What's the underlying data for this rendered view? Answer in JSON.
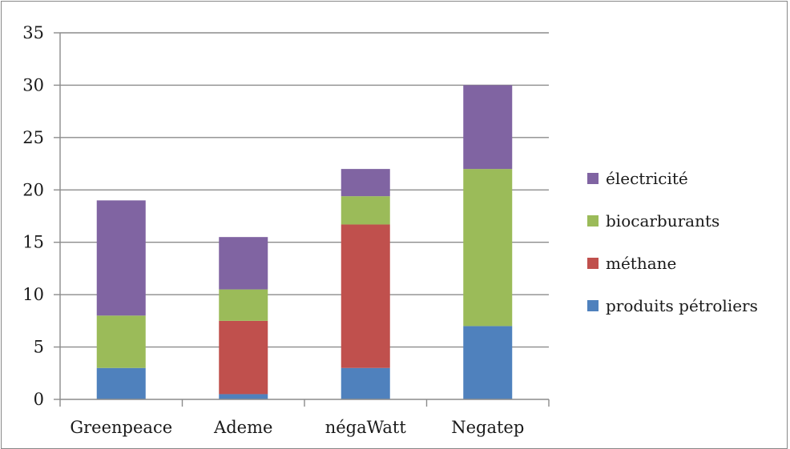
{
  "chart_data": {
    "type": "bar",
    "stacked": true,
    "categories": [
      "Greenpeace",
      "Ademe",
      "négaWatt",
      "Negatep"
    ],
    "series": [
      {
        "name": "produits pétroliers",
        "color": "#4f81bd",
        "values": [
          3,
          0.5,
          3,
          7
        ]
      },
      {
        "name": "méthane",
        "color": "#c0504d",
        "values": [
          0,
          7,
          13.7,
          0
        ]
      },
      {
        "name": "biocarburants",
        "color": "#9bbb59",
        "values": [
          5,
          3,
          2.7,
          15
        ]
      },
      {
        "name": "électricité",
        "color": "#8064a2",
        "values": [
          11,
          5,
          2.6,
          8
        ]
      }
    ],
    "legend_order": [
      "électricité",
      "biocarburants",
      "méthane",
      "produits pétroliers"
    ],
    "ylim": [
      0,
      35
    ],
    "yticks": [
      "0",
      "5",
      "10",
      "15",
      "20",
      "25",
      "30",
      "35"
    ],
    "grid": true,
    "legend_position": "right",
    "title": "",
    "xlabel": "",
    "ylabel": ""
  }
}
